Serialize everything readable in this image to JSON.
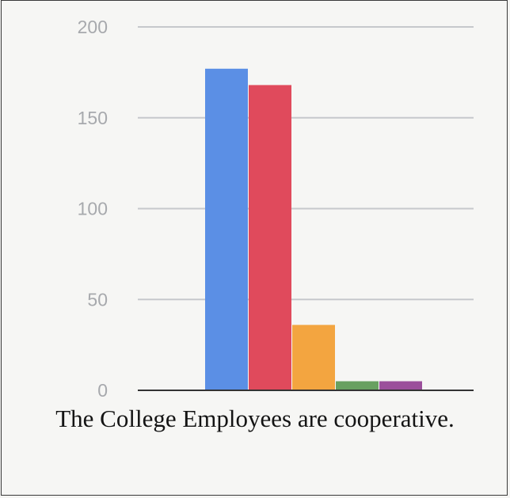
{
  "chart_data": {
    "type": "bar",
    "title": "",
    "xlabel": "",
    "ylabel": "",
    "ylim": [
      0,
      200
    ],
    "yticks": [
      0,
      50,
      100,
      150,
      200
    ],
    "grid": true,
    "legend": "none",
    "categories": [
      "",
      "",
      "",
      "",
      ""
    ],
    "values": [
      177,
      168,
      36,
      5,
      5
    ],
    "colors": [
      "#5b8fe5",
      "#e04a5c",
      "#f3a540",
      "#68a060",
      "#9b4f9b"
    ],
    "gridline_color": "#c6c8cc",
    "axis_color": "#333333"
  },
  "caption": "The College Employees are cooperative."
}
